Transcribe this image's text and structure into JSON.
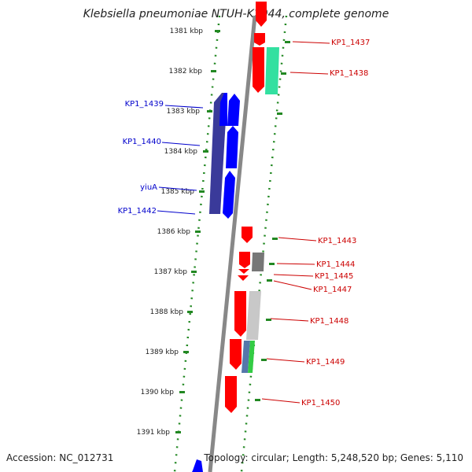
{
  "title": "Klebsiella pneumoniae NTUH-K2044, complete genome",
  "footer": {
    "accession": "Accession: NC_012731",
    "topology": "Topology: circular; Length: 5,248,520 bp; Genes: 5,110"
  },
  "kbp_labels": [
    "1381 kbp",
    "1382 kbp",
    "1383 kbp",
    "1384 kbp",
    "1385 kbp",
    "1386 kbp",
    "1387 kbp",
    "1388 kbp",
    "1389 kbp",
    "1390 kbp",
    "1391 kbp"
  ],
  "right_genes": [
    "KP1_1437",
    "KP1_1438",
    "KP1_1443",
    "KP1_1444",
    "KP1_1445",
    "KP1_1447",
    "KP1_1448",
    "KP1_1449",
    "KP1_1450"
  ],
  "left_genes": [
    "KP1_1439",
    "KP1_1440",
    "yiuA",
    "KP1_1442"
  ],
  "colors": {
    "forward_strand": "#ff0000",
    "reverse_strand": "#0000ff",
    "reverse_dark": "#3a3a9a",
    "cyan_gene": "#33e0a0",
    "gray_gene": "#777777",
    "light_gray_gene": "#c8c8c8",
    "green_gene": "#33cc44",
    "blue_gray_gene": "#5577aa",
    "backbone": "#888888",
    "dotted_track": "#228822"
  }
}
